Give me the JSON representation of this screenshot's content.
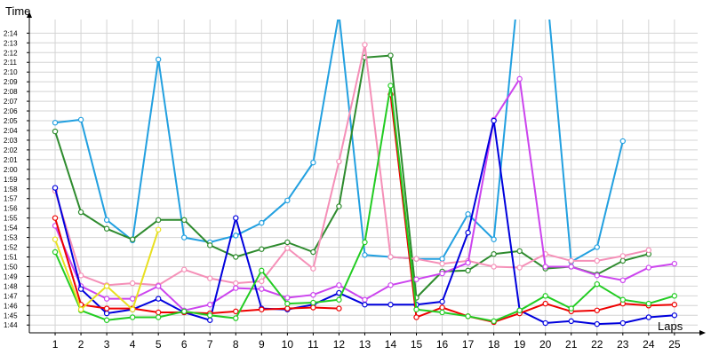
{
  "chart_data": {
    "type": "line",
    "xlabel": "Laps",
    "ylabel": "Time",
    "x": [
      1,
      2,
      3,
      4,
      5,
      6,
      7,
      8,
      9,
      10,
      11,
      12,
      13,
      14,
      15,
      16,
      17,
      18,
      19,
      20,
      21,
      22,
      23,
      24,
      25
    ],
    "xlim": [
      0,
      25.9
    ],
    "ylim": [
      103.2,
      135.4
    ],
    "grid": true,
    "y_ticks": [
      {
        "v": 104,
        "label": "1:44"
      },
      {
        "v": 105,
        "label": "1:45"
      },
      {
        "v": 106,
        "label": "1:46"
      },
      {
        "v": 107,
        "label": "1:47"
      },
      {
        "v": 108,
        "label": "1:48"
      },
      {
        "v": 109,
        "label": "1:49"
      },
      {
        "v": 110,
        "label": "1:50"
      },
      {
        "v": 111,
        "label": "1:51"
      },
      {
        "v": 112,
        "label": "1:52"
      },
      {
        "v": 113,
        "label": "1:53"
      },
      {
        "v": 114,
        "label": "1:54"
      },
      {
        "v": 115,
        "label": "1:55"
      },
      {
        "v": 116,
        "label": "1:56"
      },
      {
        "v": 117,
        "label": "1:57"
      },
      {
        "v": 118,
        "label": "1:58"
      },
      {
        "v": 119,
        "label": "1:59"
      },
      {
        "v": 120,
        "label": "2:00"
      },
      {
        "v": 121,
        "label": "2:01"
      },
      {
        "v": 122,
        "label": "2:02"
      },
      {
        "v": 123,
        "label": "2:03"
      },
      {
        "v": 124,
        "label": "2:04"
      },
      {
        "v": 125,
        "label": "2:05"
      },
      {
        "v": 126,
        "label": "2:06"
      },
      {
        "v": 127,
        "label": "2:07"
      },
      {
        "v": 128,
        "label": "2:08"
      },
      {
        "v": 129,
        "label": "2:09"
      },
      {
        "v": 130,
        "label": "2:10"
      },
      {
        "v": 131,
        "label": "2:11"
      },
      {
        "v": 132,
        "label": "2:12"
      },
      {
        "v": 133,
        "label": "2:13"
      },
      {
        "v": 134,
        "label": "2:14"
      }
    ],
    "series": [
      {
        "color": "#22a0e0",
        "values": [
          124.8,
          125.1,
          114.8,
          112.7,
          131.3,
          113.0,
          112.5,
          113.2,
          114.5,
          116.8,
          120.7,
          136.0,
          111.2,
          111.0,
          110.8,
          110.8,
          115.4,
          112.8,
          140,
          140,
          110.5,
          112.0,
          122.9,
          null,
          null
        ]
      },
      {
        "color": "#2e8b2e",
        "values": [
          123.9,
          115.6,
          113.9,
          112.8,
          114.8,
          114.8,
          112.2,
          111.0,
          111.8,
          112.5,
          111.5,
          116.2,
          131.5,
          131.7,
          106.8,
          109.5,
          109.6,
          111.3,
          111.6,
          109.8,
          110.0,
          109.2,
          110.6,
          111.3,
          null
        ]
      },
      {
        "color": "#f590b8",
        "values": [
          117.8,
          109.1,
          108.1,
          108.3,
          108.1,
          109.7,
          108.8,
          108.3,
          108.5,
          111.9,
          109.8,
          120.8,
          132.8,
          111.0,
          110.8,
          110.3,
          110.6,
          110.0,
          109.9,
          111.3,
          110.6,
          110.6,
          111.1,
          111.7,
          null
        ]
      },
      {
        "color": "#cc44ee",
        "values": [
          114.2,
          108.0,
          106.7,
          106.7,
          108.0,
          105.5,
          106.1,
          107.8,
          107.7,
          106.8,
          107.1,
          108.1,
          106.6,
          108.1,
          108.7,
          109.3,
          110.4,
          125.1,
          129.3,
          110.0,
          110.0,
          109.1,
          108.6,
          109.9,
          110.3
        ]
      },
      {
        "color": "#0000dd",
        "values": [
          118.1,
          107.7,
          105.2,
          105.6,
          106.7,
          105.3,
          104.5,
          115.0,
          105.7,
          105.6,
          106.1,
          107.3,
          106.1,
          106.1,
          106.1,
          106.4,
          113.5,
          125.0,
          105.5,
          104.2,
          104.4,
          104.1,
          104.2,
          104.8,
          105.0
        ]
      },
      {
        "color": "#ee0000",
        "values": [
          115.0,
          106.1,
          105.7,
          105.7,
          105.3,
          105.3,
          105.2,
          105.4,
          105.6,
          105.7,
          105.8,
          105.7,
          null,
          127.7,
          104.8,
          105.8,
          104.9,
          104.3,
          105.2,
          106.2,
          105.4,
          105.5,
          106.2,
          106.0,
          106.1
        ]
      },
      {
        "color": "#22cc22",
        "values": [
          111.5,
          105.5,
          104.5,
          104.8,
          104.8,
          105.4,
          105.0,
          104.7,
          109.6,
          106.2,
          106.3,
          106.6,
          112.5,
          128.6,
          105.6,
          105.3,
          104.9,
          104.4,
          105.5,
          107.0,
          105.7,
          108.2,
          106.6,
          106.2,
          107.0
        ]
      },
      {
        "color": "#e8e020",
        "values": [
          112.8,
          105.6,
          108.0,
          105.6,
          113.8,
          null,
          null,
          null,
          null,
          null,
          null,
          null,
          null,
          null,
          null,
          null,
          null,
          null,
          null,
          null,
          null,
          null,
          null,
          null,
          null
        ]
      }
    ]
  }
}
